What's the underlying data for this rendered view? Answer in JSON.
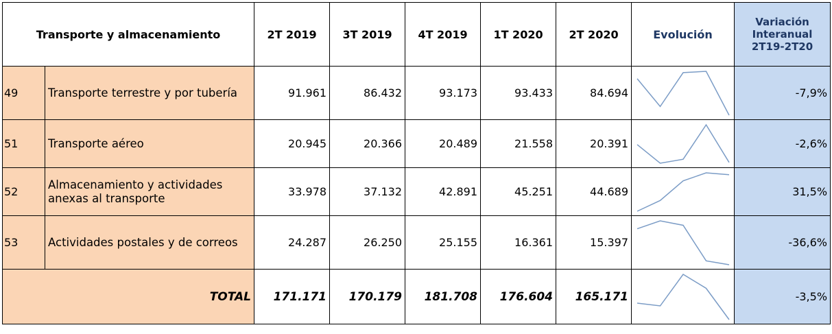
{
  "header": {
    "title": "Transporte y almacenamiento",
    "periods": [
      "2T 2019",
      "3T 2019",
      "4T 2019",
      "1T 2020",
      "2T 2020"
    ],
    "evolution": "Evolución",
    "variation": [
      "Variación",
      "Interanual",
      "2T19-2T20"
    ]
  },
  "rows": [
    {
      "code": "49",
      "name": "Transporte terrestre y por tubería",
      "values": [
        91961,
        86432,
        93173,
        93433,
        84694
      ],
      "value_labels": [
        "91.961",
        "86.432",
        "93.173",
        "93.433",
        "84.694"
      ],
      "variation": "-7,9%"
    },
    {
      "code": "51",
      "name": "Transporte aéreo",
      "values": [
        20945,
        20366,
        20489,
        21558,
        20391
      ],
      "value_labels": [
        "20.945",
        "20.366",
        "20.489",
        "21.558",
        "20.391"
      ],
      "variation": "-2,6%"
    },
    {
      "code": "52",
      "name": "Almacenamiento y actividades anexas al transporte",
      "values": [
        33978,
        37132,
        42891,
        45251,
        44689
      ],
      "value_labels": [
        "33.978",
        "37.132",
        "42.891",
        "45.251",
        "44.689"
      ],
      "variation": "31,5%"
    },
    {
      "code": "53",
      "name": "Actividades postales y de correos",
      "values": [
        24287,
        26250,
        25155,
        16361,
        15397
      ],
      "value_labels": [
        "24.287",
        "26.250",
        "25.155",
        "16.361",
        "15.397"
      ],
      "variation": "-36,6%"
    }
  ],
  "total": {
    "label": "TOTAL",
    "values": [
      171171,
      170179,
      181708,
      176604,
      165171
    ],
    "value_labels": [
      "171.171",
      "170.179",
      "181.708",
      "176.604",
      "165.171"
    ],
    "variation": "-3,5%"
  }
}
